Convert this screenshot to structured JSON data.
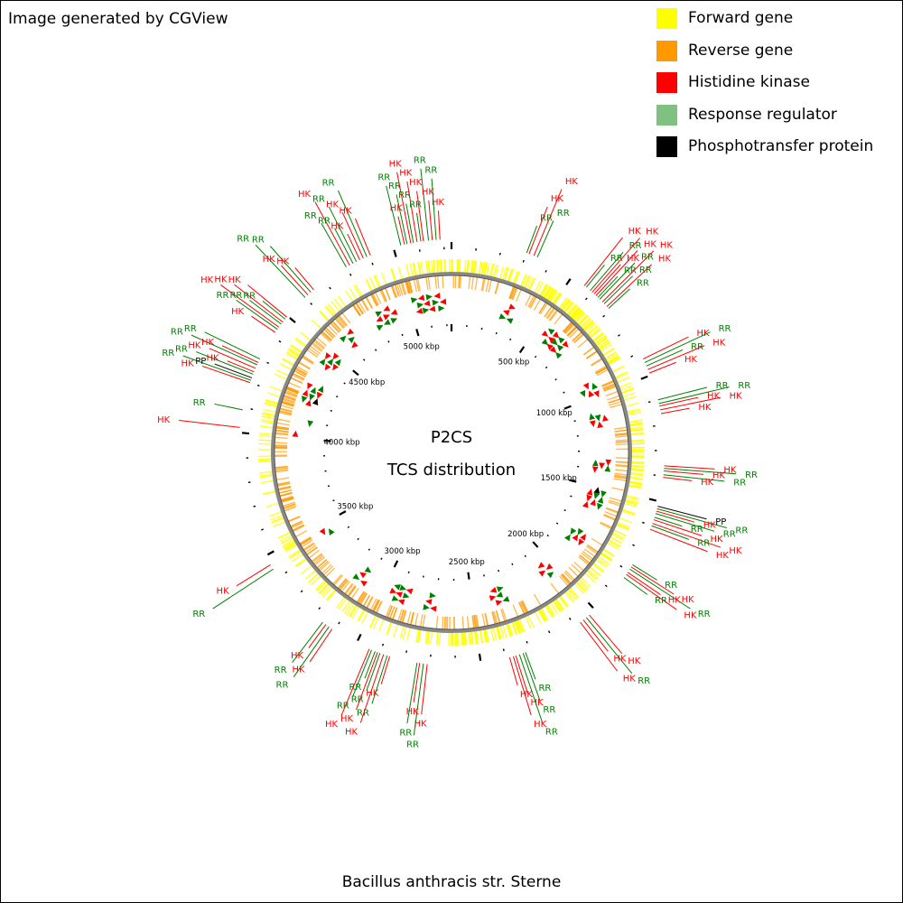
{
  "credit": "Image generated by CGView",
  "organism": "Bacillus anthracis str. Sterne",
  "center_title": [
    "P2CS",
    "TCS distribution"
  ],
  "colors": {
    "forward": "#ffff00",
    "reverse": "#ff9900",
    "hk": "#ff0000",
    "rr": "#008000",
    "rr_legend": "#80c080",
    "pp": "#000000",
    "backbone": "#888888"
  },
  "legend": [
    {
      "label": "Forward gene",
      "color": "#ffff00"
    },
    {
      "label": "Reverse gene",
      "color": "#ff9900"
    },
    {
      "label": "Histidine kinase",
      "color": "#ff0000"
    },
    {
      "label": "Response regulator",
      "color": "#80c080"
    },
    {
      "label": "Phosphotransfer protein",
      "color": "#000000"
    }
  ],
  "genome_length_kbp": 5230,
  "scale_labels": [
    {
      "kbp": 500,
      "text": "500 kbp"
    },
    {
      "kbp": 1000,
      "text": "1000 kbp"
    },
    {
      "kbp": 1500,
      "text": "1500 kbp"
    },
    {
      "kbp": 2000,
      "text": "2000 kbp"
    },
    {
      "kbp": 2500,
      "text": "2500 kbp"
    },
    {
      "kbp": 3000,
      "text": "3000 kbp"
    },
    {
      "kbp": 3500,
      "text": "3500 kbp"
    },
    {
      "kbp": 4000,
      "text": "4000 kbp"
    },
    {
      "kbp": 4500,
      "text": "4500 kbp"
    },
    {
      "kbp": 5000,
      "text": "5000 kbp"
    }
  ],
  "tcs_features": [
    {
      "kbp": 300,
      "type": "RR"
    },
    {
      "kbp": 310,
      "type": "HK"
    },
    {
      "kbp": 330,
      "type": "HK"
    },
    {
      "kbp": 345,
      "type": "RR"
    },
    {
      "kbp": 560,
      "type": "HK"
    },
    {
      "kbp": 570,
      "type": "RR"
    },
    {
      "kbp": 590,
      "type": "RR"
    },
    {
      "kbp": 600,
      "type": "HK"
    },
    {
      "kbp": 610,
      "type": "HK"
    },
    {
      "kbp": 620,
      "type": "HK"
    },
    {
      "kbp": 630,
      "type": "RR"
    },
    {
      "kbp": 640,
      "type": "RR"
    },
    {
      "kbp": 655,
      "type": "HK"
    },
    {
      "kbp": 665,
      "type": "RR"
    },
    {
      "kbp": 680,
      "type": "HK"
    },
    {
      "kbp": 690,
      "type": "RR"
    },
    {
      "kbp": 930,
      "type": "HK"
    },
    {
      "kbp": 945,
      "type": "RR"
    },
    {
      "kbp": 960,
      "type": "RR"
    },
    {
      "kbp": 975,
      "type": "HK"
    },
    {
      "kbp": 990,
      "type": "HK"
    },
    {
      "kbp": 1100,
      "type": "RR"
    },
    {
      "kbp": 1115,
      "type": "RR"
    },
    {
      "kbp": 1125,
      "type": "HK"
    },
    {
      "kbp": 1140,
      "type": "HK"
    },
    {
      "kbp": 1155,
      "type": "HK"
    },
    {
      "kbp": 1360,
      "type": "HK"
    },
    {
      "kbp": 1370,
      "type": "RR"
    },
    {
      "kbp": 1380,
      "type": "HK"
    },
    {
      "kbp": 1395,
      "type": "RR"
    },
    {
      "kbp": 1405,
      "type": "HK"
    },
    {
      "kbp": 1520,
      "type": "PP"
    },
    {
      "kbp": 1530,
      "type": "RR"
    },
    {
      "kbp": 1540,
      "type": "HK"
    },
    {
      "kbp": 1550,
      "type": "RR"
    },
    {
      "kbp": 1565,
      "type": "RR"
    },
    {
      "kbp": 1575,
      "type": "HK"
    },
    {
      "kbp": 1590,
      "type": "HK"
    },
    {
      "kbp": 1600,
      "type": "RR"
    },
    {
      "kbp": 1615,
      "type": "HK"
    },
    {
      "kbp": 1770,
      "type": "RR"
    },
    {
      "kbp": 1780,
      "type": "HK"
    },
    {
      "kbp": 1790,
      "type": "RR"
    },
    {
      "kbp": 1805,
      "type": "HK"
    },
    {
      "kbp": 1815,
      "type": "HK"
    },
    {
      "kbp": 1830,
      "type": "RR"
    },
    {
      "kbp": 2030,
      "type": "HK"
    },
    {
      "kbp": 2045,
      "type": "RR"
    },
    {
      "kbp": 2060,
      "type": "HK"
    },
    {
      "kbp": 2075,
      "type": "HK"
    },
    {
      "kbp": 2320,
      "type": "RR"
    },
    {
      "kbp": 2330,
      "type": "RR"
    },
    {
      "kbp": 2345,
      "type": "RR"
    },
    {
      "kbp": 2360,
      "type": "HK"
    },
    {
      "kbp": 2370,
      "type": "HK"
    },
    {
      "kbp": 2385,
      "type": "HK"
    },
    {
      "kbp": 2710,
      "type": "HK"
    },
    {
      "kbp": 2725,
      "type": "RR"
    },
    {
      "kbp": 2740,
      "type": "HK"
    },
    {
      "kbp": 2750,
      "type": "RR"
    },
    {
      "kbp": 2860,
      "type": "HK"
    },
    {
      "kbp": 2870,
      "type": "RR"
    },
    {
      "kbp": 2885,
      "type": "HK"
    },
    {
      "kbp": 2900,
      "type": "RR"
    },
    {
      "kbp": 2910,
      "type": "HK"
    },
    {
      "kbp": 2920,
      "type": "RR"
    },
    {
      "kbp": 2935,
      "type": "RR"
    },
    {
      "kbp": 2945,
      "type": "HK"
    },
    {
      "kbp": 3110,
      "type": "HK"
    },
    {
      "kbp": 3125,
      "type": "RR"
    },
    {
      "kbp": 3140,
      "type": "HK"
    },
    {
      "kbp": 3155,
      "type": "RR"
    },
    {
      "kbp": 3440,
      "type": "RR"
    },
    {
      "kbp": 3460,
      "type": "HK"
    },
    {
      "kbp": 4020,
      "type": "HK"
    },
    {
      "kbp": 4090,
      "type": "RR"
    },
    {
      "kbp": 4200,
      "type": "HK"
    },
    {
      "kbp": 4210,
      "type": "RR"
    },
    {
      "kbp": 4220,
      "type": "PP"
    },
    {
      "kbp": 4235,
      "type": "RR"
    },
    {
      "kbp": 4245,
      "type": "HK"
    },
    {
      "kbp": 4260,
      "type": "HK"
    },
    {
      "kbp": 4275,
      "type": "RR"
    },
    {
      "kbp": 4285,
      "type": "HK"
    },
    {
      "kbp": 4300,
      "type": "RR"
    },
    {
      "kbp": 4420,
      "type": "HK"
    },
    {
      "kbp": 4435,
      "type": "RR"
    },
    {
      "kbp": 4445,
      "type": "HK"
    },
    {
      "kbp": 4460,
      "type": "RR"
    },
    {
      "kbp": 4470,
      "type": "HK"
    },
    {
      "kbp": 4485,
      "type": "RR"
    },
    {
      "kbp": 4495,
      "type": "HK"
    },
    {
      "kbp": 4600,
      "type": "RR"
    },
    {
      "kbp": 4615,
      "type": "HK"
    },
    {
      "kbp": 4630,
      "type": "RR"
    },
    {
      "kbp": 4645,
      "type": "HK"
    },
    {
      "kbp": 4800,
      "type": "RR"
    },
    {
      "kbp": 4815,
      "type": "HK"
    },
    {
      "kbp": 4830,
      "type": "RR"
    },
    {
      "kbp": 4845,
      "type": "RR"
    },
    {
      "kbp": 4860,
      "type": "HK"
    },
    {
      "kbp": 4875,
      "type": "HK"
    },
    {
      "kbp": 4890,
      "type": "RR"
    },
    {
      "kbp": 4905,
      "type": "HK"
    },
    {
      "kbp": 5030,
      "type": "RR"
    },
    {
      "kbp": 5045,
      "type": "HK"
    },
    {
      "kbp": 5055,
      "type": "RR"
    },
    {
      "kbp": 5070,
      "type": "HK"
    },
    {
      "kbp": 5080,
      "type": "RR"
    },
    {
      "kbp": 5095,
      "type": "HK"
    },
    {
      "kbp": 5110,
      "type": "RR"
    },
    {
      "kbp": 5120,
      "type": "HK"
    },
    {
      "kbp": 5140,
      "type": "RR"
    },
    {
      "kbp": 5155,
      "type": "HK"
    },
    {
      "kbp": 5170,
      "type": "RR"
    },
    {
      "kbp": 5185,
      "type": "HK"
    }
  ]
}
